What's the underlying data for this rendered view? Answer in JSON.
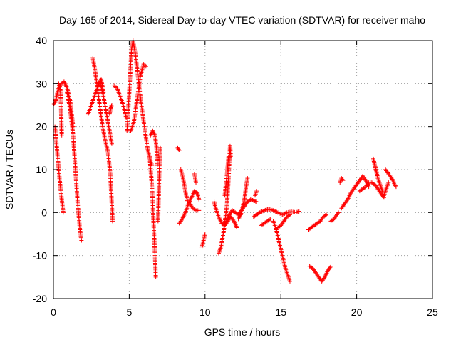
{
  "chart_data": {
    "type": "scatter",
    "title": "Day 165 of 2014, Sidereal Day-to-day VTEC variation (SDTVAR) for receiver maho",
    "xlabel": "GPS time / hours",
    "ylabel": "SDTVAR / TECUs",
    "xlim": [
      0,
      25
    ],
    "ylim": [
      -20,
      40
    ],
    "x_ticks": [
      0,
      5,
      10,
      15,
      20,
      25
    ],
    "y_ticks": [
      -20,
      -10,
      0,
      10,
      20,
      30,
      40
    ],
    "x_tick_labels": [
      "0",
      "5",
      "10",
      "15",
      "20",
      "25"
    ],
    "y_tick_labels": [
      "-20",
      "-10",
      "0",
      "10",
      "20",
      "30",
      "40"
    ],
    "grid": true,
    "marker": "+",
    "series": [
      {
        "name": "SDTVAR",
        "color": "#ff0000",
        "arcs": [
          [
            [
              0.0,
              25
            ],
            [
              0.15,
              26
            ],
            [
              0.3,
              28.5
            ],
            [
              0.5,
              30
            ],
            [
              0.7,
              30.5
            ],
            [
              0.9,
              29
            ],
            [
              1.1,
              26
            ],
            [
              1.3,
              20
            ]
          ],
          [
            [
              0.1,
              20
            ],
            [
              0.25,
              14
            ],
            [
              0.4,
              8
            ],
            [
              0.55,
              3
            ],
            [
              0.65,
              0
            ]
          ],
          [
            [
              0.35,
              30
            ],
            [
              0.45,
              29
            ],
            [
              0.5,
              25
            ],
            [
              0.55,
              18
            ]
          ],
          [
            [
              0.9,
              28
            ],
            [
              1.1,
              24
            ],
            [
              1.3,
              18
            ],
            [
              1.45,
              10
            ],
            [
              1.6,
              2
            ],
            [
              1.75,
              -4
            ],
            [
              1.85,
              -6.5
            ]
          ],
          [
            [
              2.3,
              23
            ],
            [
              2.5,
              25
            ],
            [
              2.7,
              27
            ],
            [
              2.9,
              29
            ],
            [
              3.0,
              30
            ],
            [
              3.15,
              31
            ],
            [
              3.3,
              28
            ]
          ],
          [
            [
              2.6,
              36
            ],
            [
              2.75,
              33
            ],
            [
              2.9,
              29
            ],
            [
              3.05,
              25
            ],
            [
              3.2,
              21
            ],
            [
              3.4,
              17
            ],
            [
              3.6,
              14
            ],
            [
              3.75,
              9
            ],
            [
              3.85,
              2
            ],
            [
              3.9,
              -2
            ]
          ],
          [
            [
              3.1,
              30
            ],
            [
              3.3,
              27
            ],
            [
              3.45,
              24
            ],
            [
              3.6,
              21
            ],
            [
              3.75,
              18
            ],
            [
              3.85,
              16
            ]
          ],
          [
            [
              3.7,
              23
            ],
            [
              3.8,
              24.5
            ],
            [
              3.85,
              25
            ]
          ],
          [
            [
              4.0,
              29.5
            ],
            [
              4.2,
              29
            ],
            [
              4.4,
              27
            ],
            [
              4.6,
              25
            ],
            [
              4.8,
              22
            ]
          ],
          [
            [
              4.85,
              19
            ],
            [
              5.0,
              28
            ],
            [
              5.15,
              38
            ],
            [
              5.25,
              40
            ],
            [
              5.4,
              37
            ],
            [
              5.6,
              31
            ],
            [
              5.8,
              25
            ],
            [
              6.0,
              20
            ],
            [
              6.2,
              15
            ],
            [
              6.4,
              12
            ],
            [
              6.5,
              11
            ]
          ],
          [
            [
              5.1,
              19
            ],
            [
              5.3,
              21
            ],
            [
              5.5,
              26
            ],
            [
              5.75,
              32
            ],
            [
              5.95,
              34.5
            ],
            [
              6.1,
              34
            ]
          ],
          [
            [
              6.35,
              13
            ],
            [
              6.5,
              6
            ],
            [
              6.6,
              -2
            ],
            [
              6.7,
              -10
            ],
            [
              6.75,
              -15
            ]
          ],
          [
            [
              6.4,
              18
            ],
            [
              6.55,
              19
            ],
            [
              6.7,
              18
            ],
            [
              6.8,
              15
            ],
            [
              6.85,
              11
            ]
          ],
          [
            [
              6.9,
              -2
            ],
            [
              6.95,
              5
            ],
            [
              7.0,
              12
            ],
            [
              7.05,
              15
            ]
          ],
          [
            [
              8.2,
              15
            ],
            [
              8.3,
              14.5
            ]
          ],
          [
            [
              8.3,
              -2.5
            ],
            [
              8.5,
              -1.5
            ],
            [
              8.7,
              0
            ],
            [
              8.9,
              2
            ],
            [
              9.1,
              3.5
            ],
            [
              9.3,
              5
            ],
            [
              9.5,
              4.5
            ],
            [
              9.6,
              3
            ]
          ],
          [
            [
              8.4,
              10
            ],
            [
              8.55,
              8
            ],
            [
              8.7,
              5
            ],
            [
              8.85,
              2.5
            ]
          ],
          [
            [
              9.0,
              2
            ],
            [
              9.2,
              1
            ],
            [
              9.4,
              0.5
            ],
            [
              9.6,
              0.5
            ]
          ],
          [
            [
              9.8,
              -8
            ],
            [
              9.9,
              -6.5
            ],
            [
              10.0,
              -5
            ]
          ],
          [
            [
              9.3,
              9
            ],
            [
              9.4,
              7
            ]
          ],
          [
            [
              10.6,
              2.5
            ],
            [
              10.7,
              1
            ],
            [
              10.9,
              -1
            ],
            [
              11.1,
              -2.5
            ],
            [
              11.3,
              -3
            ],
            [
              11.5,
              -2
            ],
            [
              11.7,
              -1
            ],
            [
              11.9,
              -2
            ],
            [
              12.1,
              -3.5
            ]
          ],
          [
            [
              10.9,
              -9.5
            ],
            [
              11.05,
              -8
            ],
            [
              11.2,
              -5
            ],
            [
              11.35,
              -1
            ],
            [
              11.45,
              2
            ],
            [
              11.5,
              5
            ],
            [
              11.55,
              8
            ],
            [
              11.6,
              12
            ],
            [
              11.65,
              15.5
            ],
            [
              11.7,
              13
            ]
          ],
          [
            [
              11.3,
              4
            ],
            [
              11.45,
              9
            ],
            [
              11.55,
              13
            ]
          ],
          [
            [
              11.4,
              -2
            ],
            [
              11.6,
              -0.5
            ],
            [
              11.8,
              0.5
            ],
            [
              12.0,
              0
            ],
            [
              12.2,
              -0.5
            ],
            [
              12.4,
              0.5
            ],
            [
              12.6,
              1.5
            ],
            [
              12.8,
              2.5
            ],
            [
              13.0,
              3
            ],
            [
              13.2,
              2.8
            ],
            [
              13.4,
              2.5
            ]
          ],
          [
            [
              12.2,
              -1.5
            ],
            [
              12.35,
              -0.5
            ],
            [
              12.5,
              1.5
            ],
            [
              12.6,
              3
            ],
            [
              12.7,
              6
            ],
            [
              12.8,
              8
            ]
          ],
          [
            [
              13.3,
              4
            ],
            [
              13.4,
              5
            ]
          ],
          [
            [
              13.2,
              -1
            ],
            [
              13.4,
              -0.5
            ],
            [
              13.6,
              0
            ],
            [
              13.9,
              0.5
            ],
            [
              14.2,
              0.8
            ],
            [
              14.5,
              0.5
            ],
            [
              14.8,
              0
            ],
            [
              15.1,
              -0.5
            ],
            [
              15.4,
              0
            ],
            [
              15.7,
              0.2
            ],
            [
              16.0,
              0
            ],
            [
              16.2,
              0.3
            ]
          ],
          [
            [
              13.7,
              -3
            ],
            [
              13.9,
              -2.5
            ],
            [
              14.1,
              -2
            ],
            [
              14.3,
              -1.5
            ]
          ],
          [
            [
              14.5,
              -2
            ],
            [
              14.7,
              -4
            ],
            [
              14.9,
              -7
            ],
            [
              15.1,
              -10
            ],
            [
              15.3,
              -13
            ],
            [
              15.5,
              -15
            ],
            [
              15.6,
              -16
            ]
          ],
          [
            [
              14.8,
              -3.5
            ],
            [
              15.0,
              -3
            ],
            [
              15.2,
              -2
            ],
            [
              15.4,
              -1
            ],
            [
              15.6,
              -0.5
            ]
          ],
          [
            [
              16.8,
              -4
            ],
            [
              17.0,
              -3.5
            ],
            [
              17.2,
              -3
            ],
            [
              17.4,
              -2.5
            ],
            [
              17.6,
              -2
            ],
            [
              17.8,
              -1
            ],
            [
              18.0,
              -0.5
            ]
          ],
          [
            [
              16.9,
              -12.5
            ],
            [
              17.1,
              -13
            ],
            [
              17.3,
              -14
            ],
            [
              17.5,
              -15
            ],
            [
              17.7,
              -16
            ],
            [
              17.9,
              -15
            ],
            [
              18.1,
              -13.5
            ],
            [
              18.3,
              -12.5
            ]
          ],
          [
            [
              18.3,
              -2
            ],
            [
              18.5,
              -1.5
            ],
            [
              18.7,
              -0.5
            ],
            [
              18.8,
              0
            ]
          ],
          [
            [
              18.9,
              7
            ],
            [
              19.0,
              8
            ],
            [
              19.1,
              7.5
            ]
          ],
          [
            [
              19.0,
              1
            ],
            [
              19.2,
              2
            ],
            [
              19.4,
              3
            ],
            [
              19.6,
              4.5
            ],
            [
              19.8,
              5.5
            ],
            [
              20.0,
              6.5
            ],
            [
              20.2,
              7.5
            ],
            [
              20.4,
              8.5
            ],
            [
              20.6,
              7.5
            ],
            [
              20.8,
              6
            ]
          ],
          [
            [
              20.2,
              5
            ],
            [
              20.4,
              5.5
            ],
            [
              20.6,
              6
            ],
            [
              20.8,
              7
            ],
            [
              21.0,
              7
            ],
            [
              21.2,
              6.5
            ],
            [
              21.4,
              5.5
            ],
            [
              21.6,
              4.5
            ],
            [
              21.8,
              3.5
            ]
          ],
          [
            [
              21.1,
              12.5
            ],
            [
              21.2,
              11
            ],
            [
              21.3,
              9.5
            ],
            [
              21.4,
              8
            ],
            [
              21.5,
              7
            ],
            [
              21.6,
              6
            ],
            [
              21.7,
              5
            ]
          ],
          [
            [
              21.8,
              4
            ],
            [
              21.9,
              5
            ],
            [
              22.0,
              6
            ],
            [
              22.1,
              7
            ]
          ],
          [
            [
              21.9,
              10
            ],
            [
              22.0,
              9.5
            ],
            [
              22.1,
              9
            ],
            [
              22.2,
              8.5
            ],
            [
              22.3,
              8
            ],
            [
              22.4,
              7.5
            ],
            [
              22.5,
              6.5
            ],
            [
              22.6,
              6
            ]
          ]
        ]
      }
    ]
  }
}
